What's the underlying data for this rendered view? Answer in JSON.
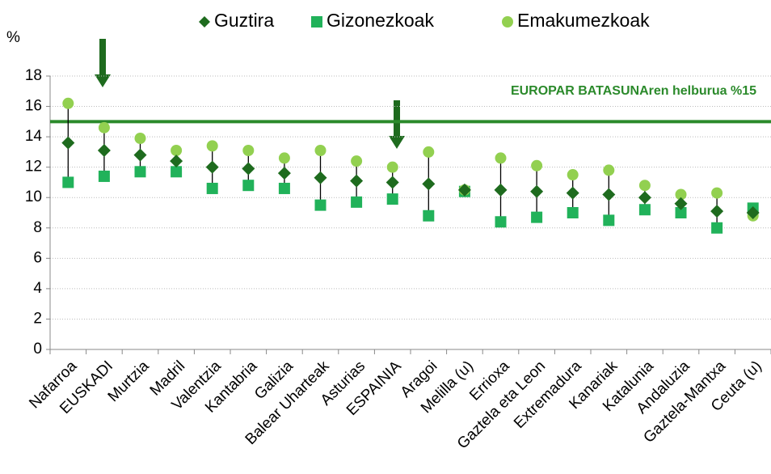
{
  "chart_data": {
    "type": "dot",
    "y_label": "%",
    "categories": [
      "Nafarroa",
      "EUSKADI",
      "Murtzia",
      "Madril",
      "Valentzia",
      "Kantabria",
      "Galizia",
      "Balear Uharteak",
      "Asturias",
      "ESPAINIA",
      "Aragoi",
      "Melilla (u)",
      "Errioxa",
      "Gaztela eta Leon",
      "Extremadura",
      "Kanariak",
      "Katalunia",
      "Andaluzia",
      "Gaztela-Mantxa",
      "Ceuta (u)"
    ],
    "series": [
      {
        "name": "Guztira",
        "color": "#1e6b1e",
        "marker": "diamond",
        "values": [
          13.6,
          13.1,
          12.8,
          12.4,
          12.0,
          11.9,
          11.6,
          11.3,
          11.1,
          11.0,
          10.9,
          10.5,
          10.5,
          10.4,
          10.3,
          10.2,
          10.0,
          9.6,
          9.1,
          9.0
        ]
      },
      {
        "name": "Gizonezkoak",
        "color": "#21b25a",
        "marker": "square",
        "values": [
          11.0,
          11.4,
          11.7,
          11.7,
          10.6,
          10.8,
          10.6,
          9.5,
          9.7,
          9.9,
          8.8,
          10.4,
          8.4,
          8.7,
          9.0,
          8.5,
          9.2,
          9.0,
          8.0,
          9.3
        ]
      },
      {
        "name": "Emakumezkoak",
        "color": "#92d050",
        "marker": "circle",
        "values": [
          16.2,
          14.6,
          13.9,
          13.1,
          13.4,
          13.1,
          12.6,
          13.1,
          12.4,
          12.0,
          13.0,
          10.5,
          12.6,
          12.1,
          11.5,
          11.8,
          10.8,
          10.2,
          10.3,
          8.8
        ]
      }
    ],
    "target": {
      "value": 15,
      "label": "EUROPAR BATASUNAren helburua %15",
      "color": "#2b8a2b"
    },
    "ylim": [
      0,
      18
    ],
    "yticks": [
      0,
      2,
      4,
      6,
      8,
      10,
      12,
      14,
      16,
      18
    ],
    "grid": true
  }
}
